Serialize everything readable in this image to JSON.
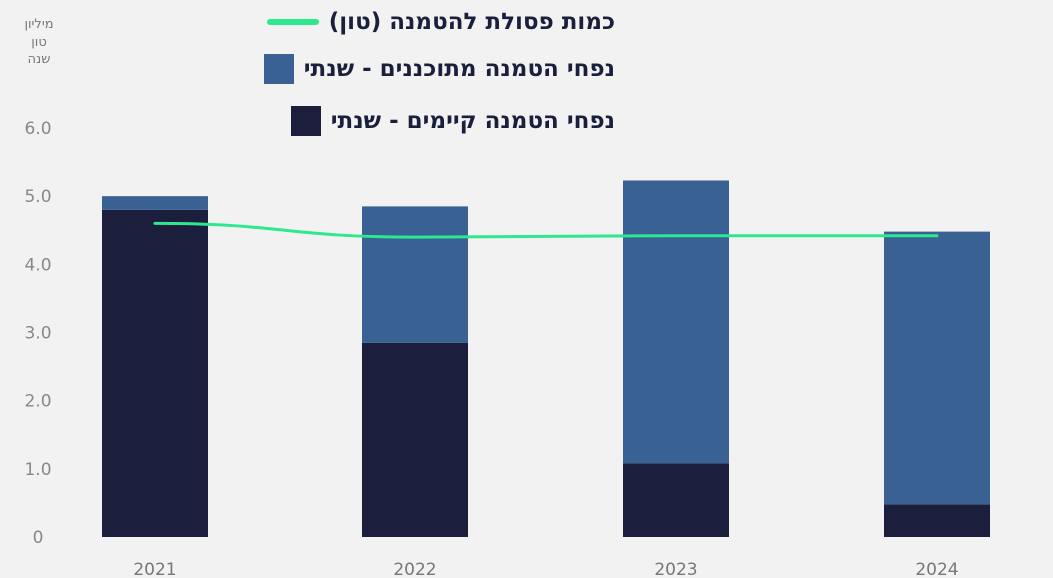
{
  "chart_data": {
    "type": "bar",
    "stacked": true,
    "categories": [
      "2021",
      "2022",
      "2023",
      "2024"
    ],
    "series": [
      {
        "name": "נפחי הטמנה קיימים - שנתי",
        "kind": "bar",
        "color": "#1b1e3d",
        "values": [
          4.8,
          2.85,
          1.08,
          0.48
        ]
      },
      {
        "name": "נפחי הטמנה מתוכננים - שנתי",
        "kind": "bar",
        "color": "#3a6193",
        "values": [
          0.2,
          2.0,
          4.15,
          4.0
        ]
      },
      {
        "name": "כמות פסולת להטמנה (טון)",
        "kind": "line",
        "color": "#2de88f",
        "values": [
          4.6,
          4.4,
          4.42,
          4.42
        ]
      }
    ],
    "y_ticks": [
      "6.0",
      "5.0",
      "4.0",
      "3.0",
      "2.0",
      "1.0",
      "0"
    ],
    "ylim": [
      0,
      6
    ],
    "unit_label": [
      "מיליון",
      "טון",
      "שנה"
    ],
    "grid": false,
    "legend_position": "top"
  }
}
